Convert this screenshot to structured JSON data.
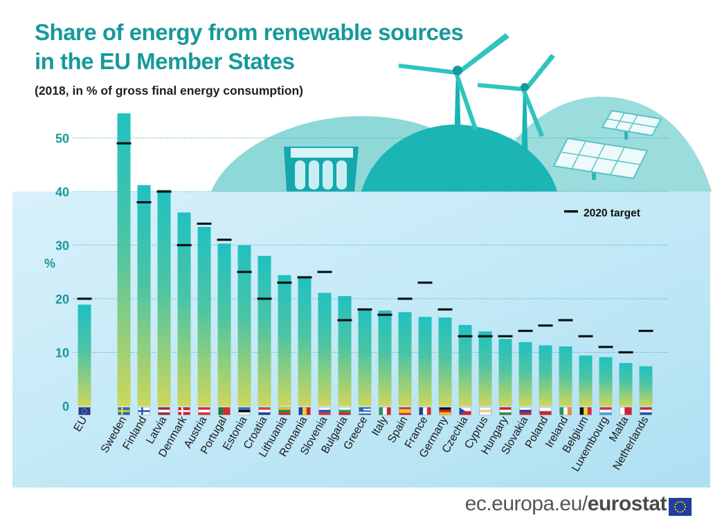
{
  "title_line1": "Share of energy from renewable sources",
  "title_line2": "in the EU Member States",
  "subtitle": "(2018, in % of gross final energy consumption)",
  "footer": {
    "domain": "ec.europa.eu/",
    "brand": "eurostat"
  },
  "colors": {
    "title": "#17999a",
    "bar_top": "#20c1c1",
    "bar_bottom": "#c9d55a",
    "panel": "#c8ecf8",
    "hills": "#8fd8d8",
    "target": "#111111",
    "gridline": "#39b5b5"
  },
  "chart_data": {
    "type": "bar",
    "title": "Share of energy from renewable sources in the EU Member States",
    "subtitle": "(2018, in % of gross final energy consumption)",
    "ylabel": "%",
    "ylim": [
      0,
      55
    ],
    "yticks": [
      0,
      10,
      20,
      30,
      40,
      50
    ],
    "grid": true,
    "legend_position": "top-right",
    "categories": [
      "EU",
      "Sweden",
      "Finland",
      "Latvia",
      "Denmark",
      "Austria",
      "Portugal",
      "Estonia",
      "Croatia",
      "Lithuania",
      "Romania",
      "Slovenia",
      "Bulgaria",
      "Greece",
      "Italy",
      "Spain",
      "France",
      "Germany",
      "Czechia",
      "Cyprus",
      "Hungary",
      "Slovakia",
      "Poland",
      "Ireland",
      "Belgium",
      "Luxembourg",
      "Malta",
      "Netherlands"
    ],
    "series": [
      {
        "name": "",
        "values": [
          18.9,
          54.6,
          41.2,
          40.3,
          36.1,
          33.4,
          30.3,
          30.0,
          28.0,
          24.4,
          23.9,
          21.1,
          20.5,
          18.0,
          17.8,
          17.5,
          16.6,
          16.5,
          15.1,
          13.9,
          12.5,
          11.9,
          11.3,
          11.1,
          9.4,
          9.1,
          8.0,
          7.4
        ]
      },
      {
        "name": "2020 target",
        "values": [
          20,
          49,
          38,
          40,
          30,
          34,
          31,
          25,
          20,
          23,
          24,
          25,
          16,
          18,
          17,
          20,
          23,
          18,
          13,
          13,
          13,
          14,
          15,
          16,
          13,
          11,
          10,
          14
        ]
      }
    ],
    "legend": [
      "2020 target"
    ]
  }
}
